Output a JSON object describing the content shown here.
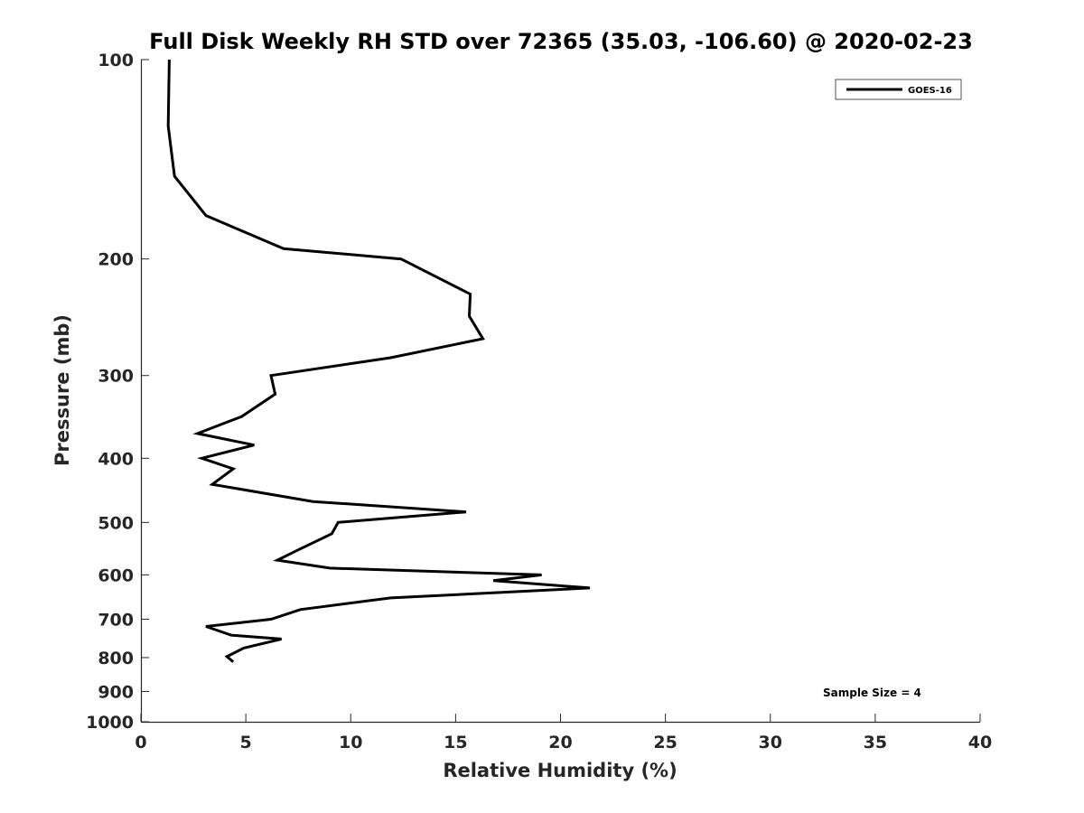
{
  "chart_data": {
    "type": "line",
    "title": "Full Disk Weekly RH STD over 72365 (35.03, -106.60) @ 2020-02-23",
    "xlabel": "Relative Humidity (%)",
    "ylabel": "Pressure (mb)",
    "xlim": [
      0,
      40
    ],
    "ylim": [
      100,
      1000
    ],
    "y_scale": "log",
    "y_inverted": true,
    "x_ticks": [
      0,
      5,
      10,
      15,
      20,
      25,
      30,
      35,
      40
    ],
    "y_ticks": [
      100,
      200,
      300,
      400,
      500,
      600,
      700,
      800,
      900,
      1000
    ],
    "grid": false,
    "legend_position": "top-right",
    "annotation": "Sample Size = 4",
    "series": [
      {
        "name": "GOES-16",
        "color": "#000000",
        "x": [
          1.35,
          1.3,
          1.6,
          3.1,
          6.8,
          12.4,
          15.7,
          15.65,
          16.3,
          11.9,
          6.2,
          6.4,
          4.8,
          2.7,
          5.4,
          2.9,
          4.4,
          3.4,
          8.2,
          15.5,
          9.4,
          9.1,
          7.5,
          6.5,
          9.0,
          19.1,
          16.8,
          21.4,
          11.9,
          7.6,
          6.2,
          3.1,
          4.3,
          6.7,
          4.9,
          4.1,
          4.4
        ],
        "y": [
          100,
          126,
          150,
          172,
          193,
          200,
          226,
          244,
          264,
          282,
          300,
          320,
          346,
          367,
          382,
          400,
          415,
          438,
          465,
          482,
          500,
          520,
          550,
          570,
          586,
          600,
          612,
          628,
          650,
          677,
          700,
          718,
          740,
          750,
          774,
          797,
          812
        ]
      }
    ]
  }
}
